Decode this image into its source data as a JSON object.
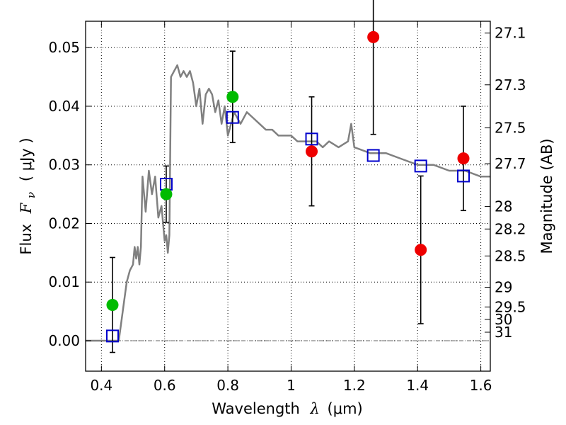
{
  "chart_data": {
    "type": "scatter",
    "xlabel": {
      "prefix": "Wavelength",
      "symbol": "λ",
      "units": "(μm)"
    },
    "ylabel": {
      "prefix": "Flux",
      "symbol": "F",
      "subscript": "ν",
      "units": "( μJy )"
    },
    "y2label": "Magnitude (AB)",
    "xlim": [
      0.35,
      1.63
    ],
    "ylim": [
      -0.0052,
      0.0545
    ],
    "x_ticks": [
      0.4,
      0.6,
      0.8,
      1.0,
      1.2,
      1.4,
      1.6
    ],
    "x_tick_labels": [
      "0.4",
      "0.6",
      "0.8",
      "1",
      "1.2",
      "1.4",
      "1.6"
    ],
    "y_ticks": [
      0.0,
      0.01,
      0.02,
      0.03,
      0.04,
      0.05
    ],
    "y_tick_labels": [
      "0.00",
      "0.01",
      "0.02",
      "0.03",
      "0.04",
      "0.05"
    ],
    "right_ticks": [
      {
        "mag": 27.1,
        "label": "27.1"
      },
      {
        "mag": 27.3,
        "label": "27.3"
      },
      {
        "mag": 27.5,
        "label": "27.5"
      },
      {
        "mag": 27.7,
        "label": "27.7"
      },
      {
        "mag": 28.0,
        "label": "28"
      },
      {
        "mag": 28.2,
        "label": "28.2"
      },
      {
        "mag": 28.5,
        "label": "28.5"
      },
      {
        "mag": 29.0,
        "label": "29"
      },
      {
        "mag": 29.5,
        "label": "29.5"
      },
      {
        "mag": 30.0,
        "label": "30"
      },
      {
        "mag": 31.0,
        "label": "31"
      }
    ],
    "grid": true,
    "colors": {
      "model": "#808080",
      "green": "#00bb00",
      "red": "#ee0000",
      "blue": "#0000cc",
      "error": "#000000"
    },
    "series": [
      {
        "type": "line",
        "x": [
          0.35,
          0.44,
          0.455,
          0.47,
          0.48,
          0.49,
          0.5,
          0.505,
          0.51,
          0.515,
          0.52,
          0.525,
          0.53,
          0.54,
          0.55,
          0.56,
          0.57,
          0.58,
          0.59,
          0.6,
          0.605,
          0.61,
          0.615,
          0.62,
          0.63,
          0.64,
          0.65,
          0.66,
          0.67,
          0.68,
          0.69,
          0.7,
          0.71,
          0.72,
          0.73,
          0.74,
          0.75,
          0.76,
          0.77,
          0.78,
          0.79,
          0.8,
          0.82,
          0.84,
          0.86,
          0.88,
          0.9,
          0.92,
          0.94,
          0.96,
          0.98,
          1.0,
          1.02,
          1.04,
          1.06,
          1.08,
          1.1,
          1.12,
          1.15,
          1.18,
          1.19,
          1.2,
          1.25,
          1.3,
          1.35,
          1.4,
          1.45,
          1.5,
          1.55,
          1.6,
          1.63
        ],
        "y": [
          0.0,
          0.0,
          0.0,
          0.006,
          0.01,
          0.012,
          0.013,
          0.016,
          0.014,
          0.016,
          0.013,
          0.016,
          0.028,
          0.022,
          0.029,
          0.025,
          0.028,
          0.021,
          0.023,
          0.017,
          0.018,
          0.015,
          0.018,
          0.045,
          0.046,
          0.047,
          0.045,
          0.046,
          0.045,
          0.046,
          0.044,
          0.04,
          0.043,
          0.037,
          0.042,
          0.043,
          0.042,
          0.039,
          0.041,
          0.037,
          0.04,
          0.035,
          0.039,
          0.037,
          0.039,
          0.038,
          0.037,
          0.036,
          0.036,
          0.035,
          0.035,
          0.035,
          0.034,
          0.034,
          0.034,
          0.034,
          0.033,
          0.034,
          0.033,
          0.034,
          0.037,
          0.033,
          0.032,
          0.032,
          0.031,
          0.03,
          0.03,
          0.029,
          0.029,
          0.028,
          0.028
        ]
      },
      {
        "type": "scatter",
        "marker": "circle",
        "color": "green",
        "points": [
          {
            "x": 0.435,
            "y": 0.0061,
            "err": 0.0081
          },
          {
            "x": 0.605,
            "y": 0.025,
            "err": 0.0048
          },
          {
            "x": 0.815,
            "y": 0.0416,
            "err": 0.0078
          }
        ]
      },
      {
        "type": "scatter",
        "marker": "circle",
        "color": "red",
        "points": [
          {
            "x": 1.065,
            "y": 0.0323,
            "err": 0.0093
          },
          {
            "x": 1.26,
            "y": 0.0518,
            "err": 0.0166
          },
          {
            "x": 1.41,
            "y": 0.0155,
            "err": 0.0126
          },
          {
            "x": 1.545,
            "y": 0.0311,
            "err": 0.0089
          }
        ]
      },
      {
        "type": "scatter",
        "marker": "square",
        "color": "blue",
        "points": [
          {
            "x": 0.435,
            "y": 0.0008
          },
          {
            "x": 0.605,
            "y": 0.0267
          },
          {
            "x": 0.815,
            "y": 0.0381
          },
          {
            "x": 1.065,
            "y": 0.0344
          },
          {
            "x": 1.26,
            "y": 0.0316
          },
          {
            "x": 1.41,
            "y": 0.0298
          },
          {
            "x": 1.545,
            "y": 0.0281
          }
        ]
      }
    ]
  }
}
